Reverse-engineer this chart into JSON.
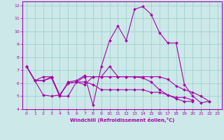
{
  "xlabel": "Windchill (Refroidissement éolien,°C)",
  "xlim": [
    -0.5,
    23.5
  ],
  "ylim": [
    4,
    12.3
  ],
  "xticks": [
    0,
    1,
    2,
    3,
    4,
    5,
    6,
    7,
    8,
    9,
    10,
    11,
    12,
    13,
    14,
    15,
    16,
    17,
    18,
    19,
    20,
    21,
    22,
    23
  ],
  "yticks": [
    4,
    5,
    6,
    7,
    8,
    9,
    10,
    11,
    12
  ],
  "line_color": "#aa00aa",
  "bg_color": "#cce8e8",
  "grid_color": "#99cccc",
  "lines": [
    {
      "x": [
        0,
        1,
        2,
        3,
        4,
        5,
        6,
        7,
        8,
        9,
        10,
        11,
        12,
        13,
        14,
        15,
        16,
        17,
        18,
        19,
        20,
        21,
        22
      ],
      "y": [
        7.3,
        6.2,
        6.2,
        6.4,
        5.0,
        6.1,
        6.2,
        6.6,
        4.3,
        7.3,
        9.3,
        10.4,
        9.3,
        11.7,
        11.9,
        11.3,
        9.9,
        9.1,
        9.1,
        5.9,
        5.0,
        4.5,
        4.6
      ]
    },
    {
      "x": [
        0,
        1,
        2,
        3,
        4,
        5,
        6,
        7,
        8,
        9,
        10,
        11,
        12,
        13,
        14,
        15,
        16,
        17,
        18,
        19,
        20,
        21,
        22
      ],
      "y": [
        7.3,
        6.2,
        6.2,
        6.5,
        5.1,
        6.0,
        6.1,
        6.5,
        6.5,
        6.5,
        7.3,
        6.5,
        6.5,
        6.5,
        6.5,
        6.5,
        6.5,
        6.3,
        5.8,
        5.5,
        5.3,
        5.0,
        4.6
      ]
    },
    {
      "x": [
        0,
        1,
        2,
        3,
        4,
        5,
        6,
        7,
        8,
        9,
        10,
        11,
        12,
        13,
        14,
        15,
        16,
        17,
        18,
        19,
        20
      ],
      "y": [
        7.3,
        6.2,
        5.1,
        5.0,
        5.1,
        6.0,
        6.1,
        6.1,
        5.9,
        5.5,
        5.5,
        5.5,
        5.5,
        5.5,
        5.5,
        5.3,
        5.3,
        5.1,
        4.8,
        4.6,
        4.6
      ]
    },
    {
      "x": [
        0,
        1,
        2,
        3,
        4,
        5,
        6,
        7,
        8,
        9,
        10,
        11,
        12,
        13,
        14,
        15,
        16,
        17,
        18,
        19,
        20
      ],
      "y": [
        7.3,
        6.2,
        6.5,
        6.5,
        5.0,
        5.0,
        6.1,
        5.9,
        6.5,
        6.5,
        6.5,
        6.5,
        6.5,
        6.5,
        6.4,
        6.1,
        5.5,
        5.1,
        4.9,
        4.9,
        4.7
      ]
    }
  ]
}
